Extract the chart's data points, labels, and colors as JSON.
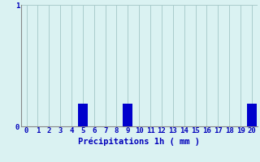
{
  "categories": [
    0,
    1,
    2,
    3,
    4,
    5,
    6,
    7,
    8,
    9,
    10,
    11,
    12,
    13,
    14,
    15,
    16,
    17,
    18,
    19,
    20
  ],
  "values": [
    0,
    0,
    0,
    0,
    0,
    0.19,
    0,
    0,
    0,
    0.19,
    0,
    0,
    0,
    0,
    0,
    0,
    0,
    0,
    0,
    0,
    0.19
  ],
  "bar_color": "#0000cc",
  "background_color": "#daf2f2",
  "grid_color": "#aacccc",
  "text_color": "#0000bb",
  "xlabel": "Précipitations 1h ( mm )",
  "ylim": [
    0,
    1
  ],
  "xlim": [
    -0.5,
    20.5
  ],
  "tick_fontsize": 6.5,
  "xlabel_fontsize": 7.5
}
